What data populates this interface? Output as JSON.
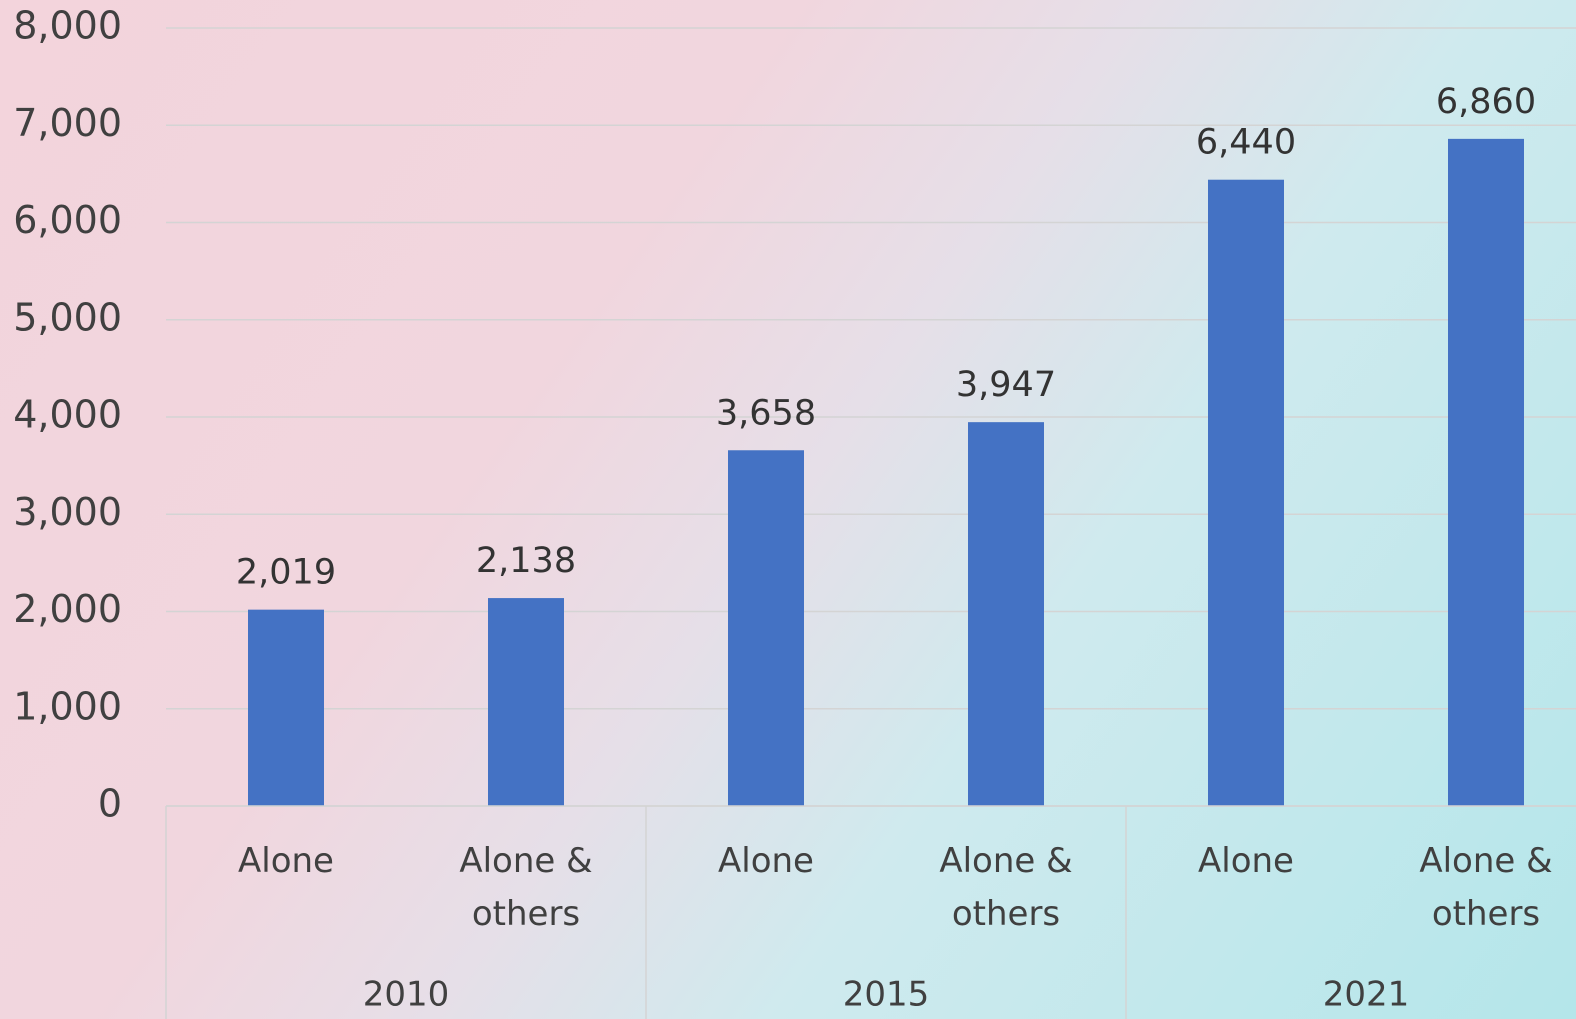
{
  "chart_data": {
    "type": "bar",
    "categories": [
      "Alone",
      "Alone & others",
      "Alone",
      "Alone & others",
      "Alone",
      "Alone & others"
    ],
    "groups": [
      "2010",
      "2015",
      "2021"
    ],
    "values": [
      2019,
      2138,
      3658,
      3947,
      6440,
      6860
    ],
    "value_labels": [
      "2,019",
      "2,138",
      "3,658",
      "3,947",
      "6,440",
      "6,860"
    ],
    "color": "#4472c4",
    "ylim": [
      0,
      8000
    ],
    "yticks": [
      0,
      {
        "value": 1000,
        "label": "1,000"
      },
      {
        "value": 2000,
        "label": "2,000"
      },
      {
        "value": 3000,
        "label": "3,000"
      },
      {
        "value": 4000,
        "label": "4,000"
      },
      {
        "value": 5000,
        "label": "5,000"
      },
      {
        "value": 6000,
        "label": "6,000"
      },
      {
        "value": 7000,
        "label": "7,000"
      },
      {
        "value": 8000,
        "label": "8,000"
      }
    ],
    "grid": true
  }
}
